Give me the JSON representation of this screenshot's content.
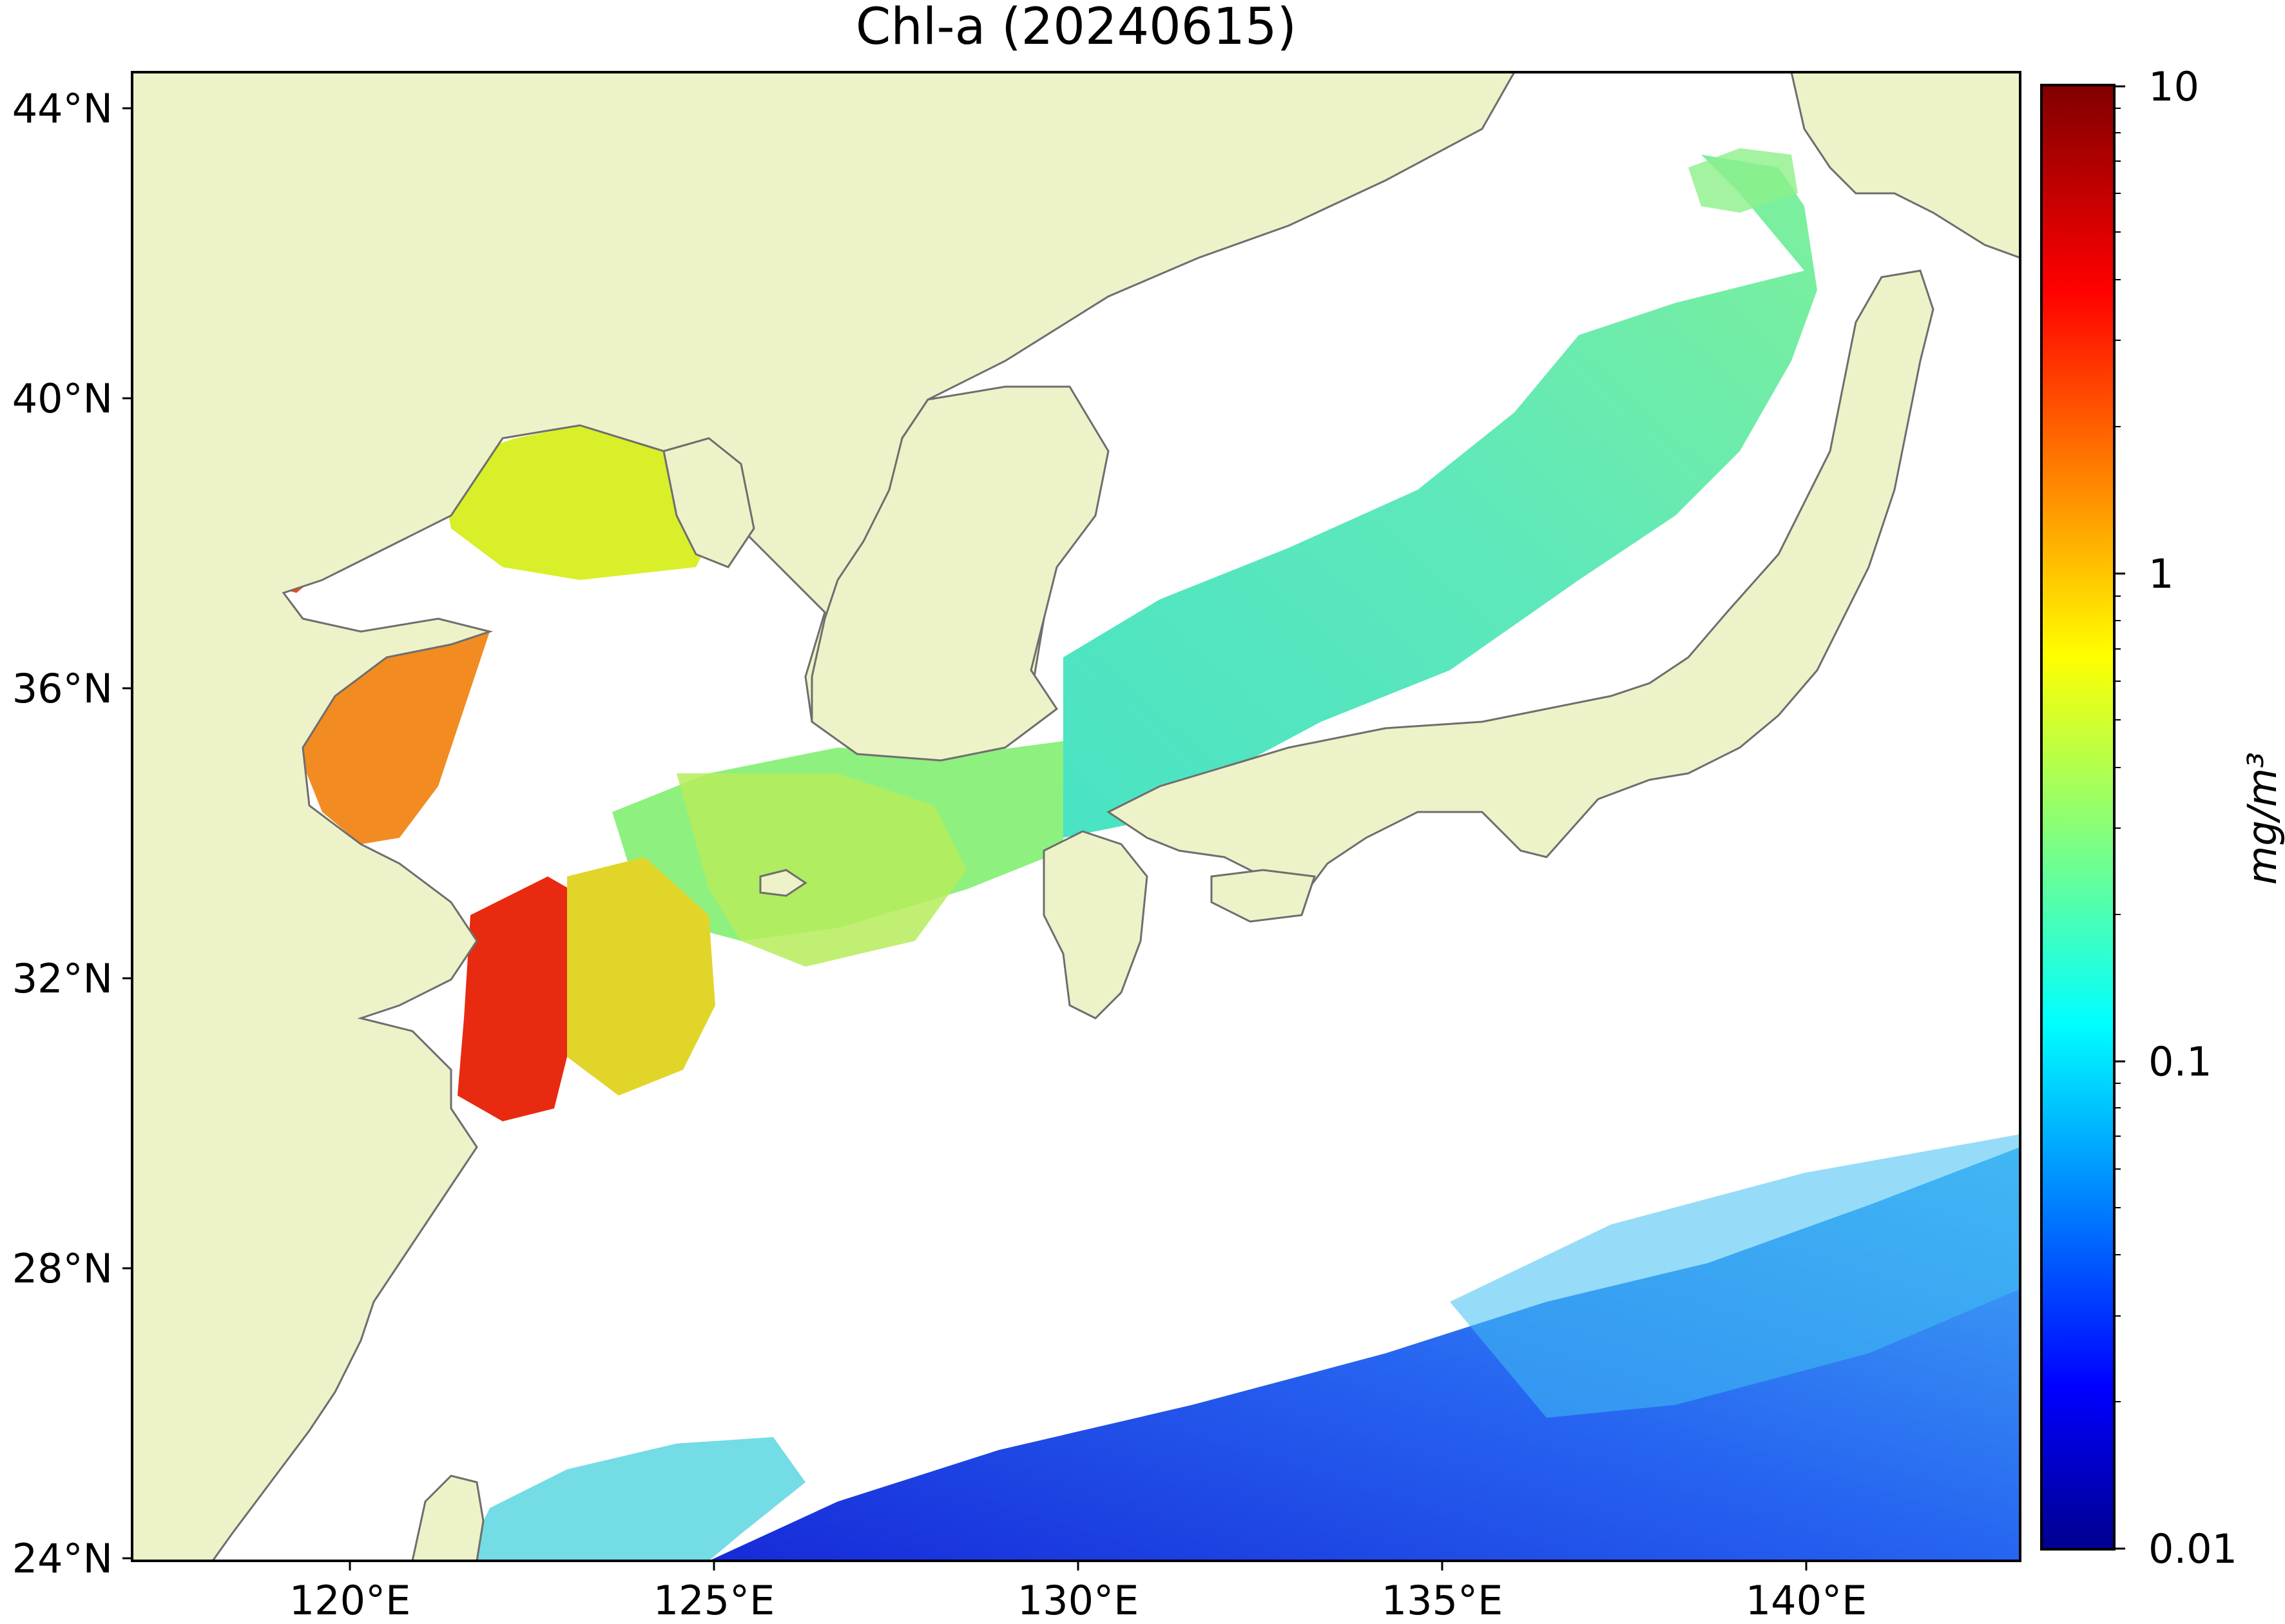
{
  "title": "Chl-a (20240615)",
  "map": {
    "lat_ticks": [
      "44°N",
      "40°N",
      "36°N",
      "32°N",
      "28°N",
      "24°N"
    ],
    "lon_ticks": [
      "120°E",
      "125°E",
      "130°E",
      "135°E",
      "140°E"
    ],
    "lat_range": [
      24,
      44.5
    ],
    "lon_range": [
      117,
      143
    ]
  },
  "colorbar": {
    "label": "mg/m³",
    "scale": "log",
    "range": [
      0.01,
      10
    ],
    "ticks": [
      "10",
      "1",
      "0.1",
      "0.01"
    ],
    "colormap": "jet"
  },
  "colors": {
    "land": "#eef2c8",
    "coast": "#6e6e6e",
    "no_data": "#ffffff",
    "frame": "#000000"
  }
}
